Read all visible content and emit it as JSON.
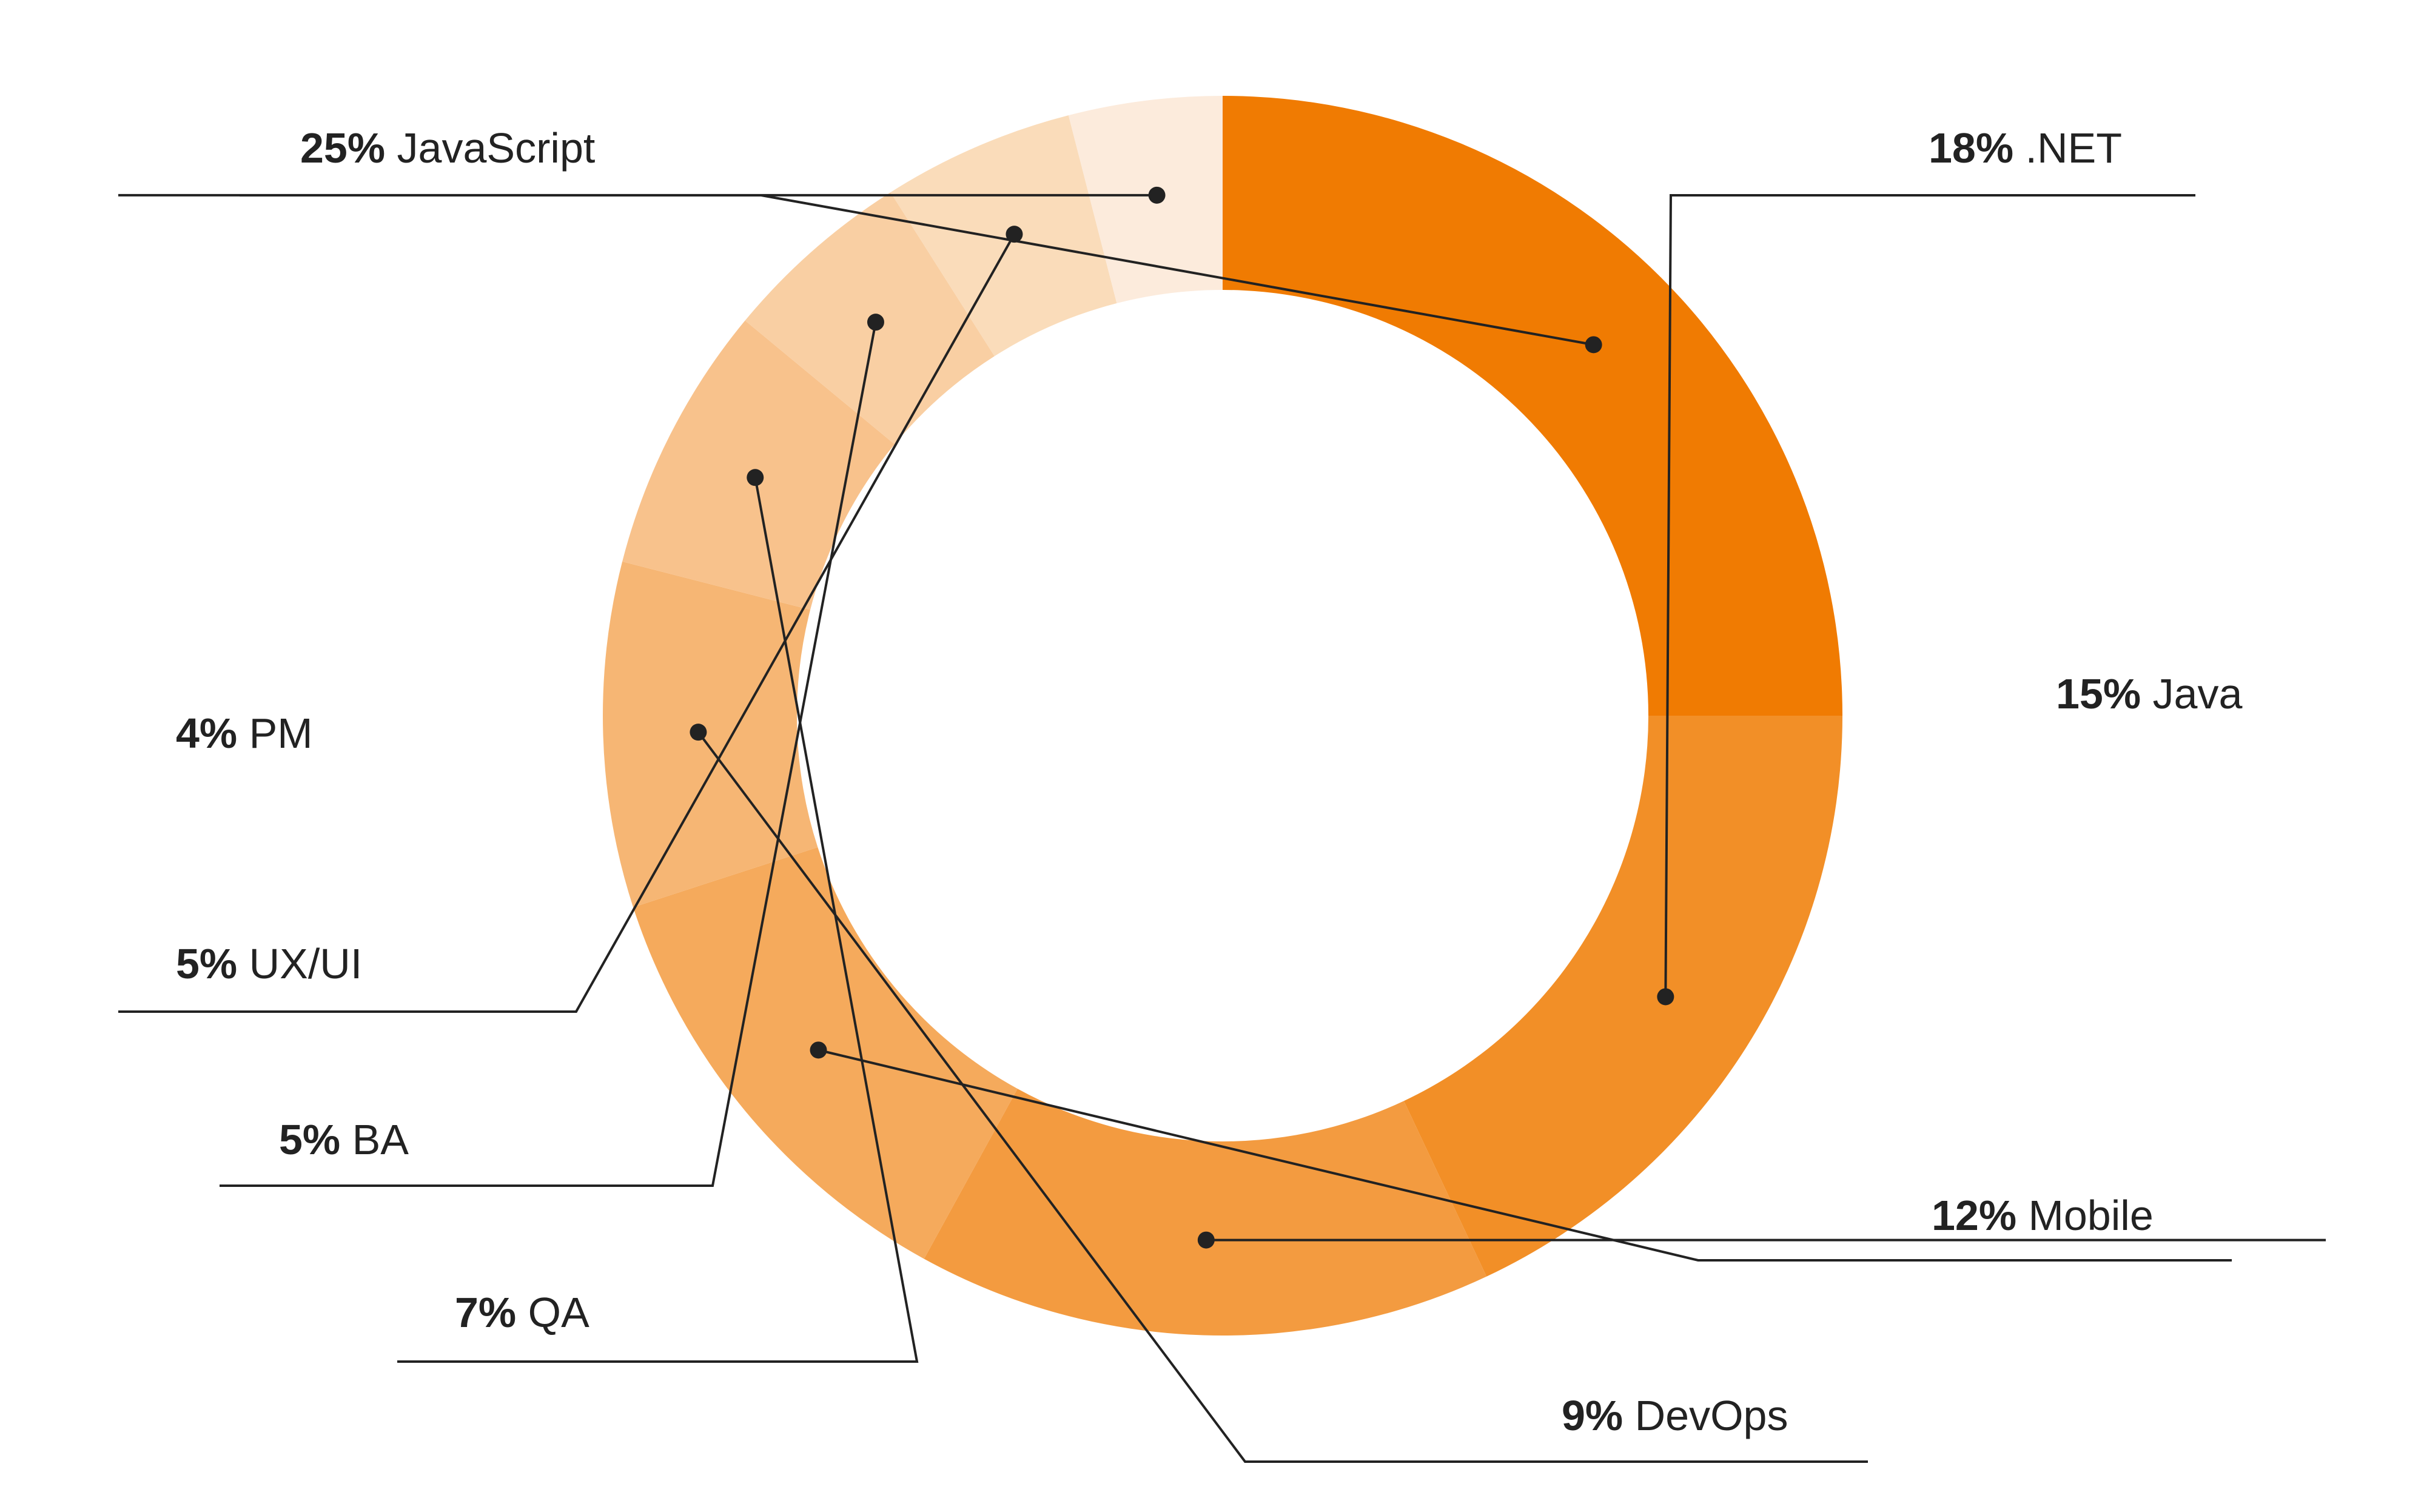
{
  "chart_data": {
    "type": "pie",
    "subtype": "donut",
    "legend": "leader-line labels",
    "unit": "%",
    "slices": [
      {
        "label": "JavaScript",
        "value": 25,
        "color": "#F07B02"
      },
      {
        "label": ".NET",
        "value": 18,
        "color": "#F28F27"
      },
      {
        "label": "Java",
        "value": 15,
        "color": "#F39B40"
      },
      {
        "label": "Mobile",
        "value": 12,
        "color": "#F5AA5C"
      },
      {
        "label": "DevOps",
        "value": 9,
        "color": "#F6B674"
      },
      {
        "label": "QA",
        "value": 7,
        "color": "#F8C28C"
      },
      {
        "label": "BA",
        "value": 5,
        "color": "#F9CFA3"
      },
      {
        "label": "UX/UI",
        "value": 5,
        "color": "#FADCBA"
      },
      {
        "label": "PM",
        "value": 4,
        "color": "#FCEBDC"
      }
    ],
    "leader_line_color": "#222222",
    "background": "#FFFFFF"
  }
}
